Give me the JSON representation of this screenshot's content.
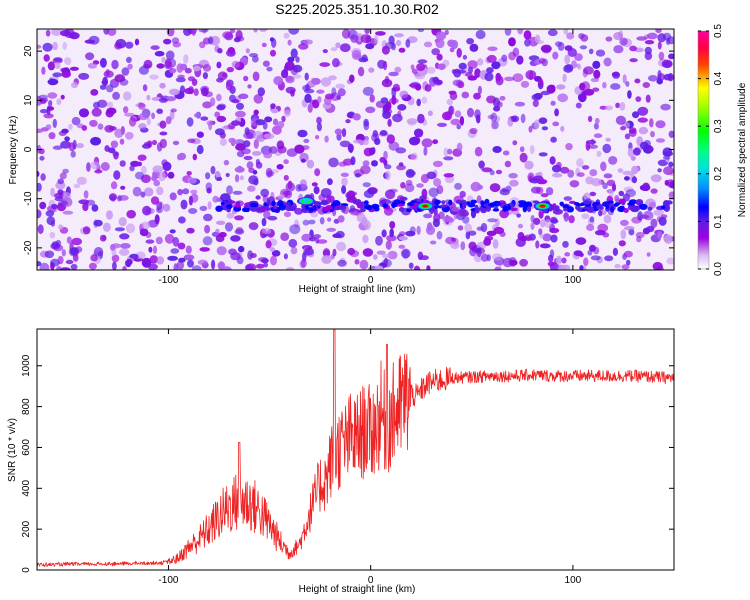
{
  "figure": {
    "title": "S225.2025.351.10.30.R02"
  },
  "chart_data": [
    {
      "type": "heatmap",
      "xlabel": "Height of straight line (km)",
      "ylabel": "Frequency (Hz)",
      "xlim": [
        -165,
        150
      ],
      "ylim": [
        -24.5,
        24.5
      ],
      "xticks": [
        -100,
        0,
        100
      ],
      "yticks": [
        -20,
        -10,
        0,
        10,
        20
      ],
      "colorbar": {
        "label": "Normalized spectral amplitude",
        "range": [
          0.0,
          0.5
        ],
        "ticks": [
          0.0,
          0.1,
          0.2,
          0.3,
          0.4,
          0.5
        ],
        "tick_labels": [
          "0.0",
          "0.1",
          "0.2",
          "0.3",
          "0.4",
          "0.5"
        ],
        "colors": [
          "#ffffff",
          "#a000e0",
          "#5a1ee6",
          "#0000ff",
          "#00c8ff",
          "#00ff80",
          "#00ff00",
          "#ffff00",
          "#ff0000",
          "#ff00a0"
        ]
      },
      "features": [
        {
          "name": "signal band",
          "frequency": -11.5,
          "x_from": -75,
          "x_to": 148,
          "peak_amplitude": 0.45
        },
        {
          "name": "peak",
          "x": 27,
          "frequency": -11.5,
          "amplitude": 0.42
        },
        {
          "name": "peak",
          "x": 85,
          "frequency": -11.5,
          "amplitude": 0.45
        },
        {
          "name": "peak",
          "x": -32,
          "frequency": -10.5,
          "amplitude": 0.2
        }
      ]
    },
    {
      "type": "line",
      "xlabel": "Height of straight line (km)",
      "ylabel": "SNR (10 * v/v)",
      "xlim": [
        -165,
        150
      ],
      "ylim": [
        0,
        1180
      ],
      "xticks": [
        -100,
        0,
        100
      ],
      "yticks": [
        0,
        200,
        400,
        600,
        800,
        1000
      ],
      "series": [
        {
          "color": "#ee2222",
          "x": [
            -165,
            -150,
            -130,
            -110,
            -100,
            -95,
            -90,
            -85,
            -80,
            -75,
            -70,
            -65,
            -60,
            -55,
            -50,
            -45,
            -40,
            -35,
            -30,
            -28,
            -25,
            -22,
            -20,
            -18,
            -15,
            -12,
            -10,
            -8,
            -5,
            -2,
            0,
            3,
            5,
            8,
            10,
            13,
            15,
            18,
            20,
            23,
            25,
            28,
            30,
            35,
            40,
            50,
            60,
            70,
            80,
            90,
            100,
            110,
            120,
            130,
            140,
            150
          ],
          "y": [
            25,
            28,
            30,
            33,
            38,
            60,
            110,
            150,
            200,
            260,
            310,
            340,
            330,
            290,
            220,
            140,
            80,
            130,
            280,
            340,
            420,
            440,
            520,
            560,
            600,
            620,
            650,
            640,
            660,
            700,
            660,
            720,
            760,
            710,
            740,
            780,
            800,
            840,
            860,
            850,
            880,
            910,
            920,
            930,
            940,
            945,
            950,
            950,
            955,
            950,
            950,
            950,
            950,
            950,
            945,
            940
          ]
        }
      ],
      "annotations": [
        {
          "x": -18,
          "y": 1175
        },
        {
          "x": -65,
          "y": 625
        },
        {
          "x": 8,
          "y": 1105
        }
      ]
    }
  ],
  "colors": {
    "signal_red": "#ee2222",
    "background": "#ffffff",
    "axis": "#000000"
  }
}
